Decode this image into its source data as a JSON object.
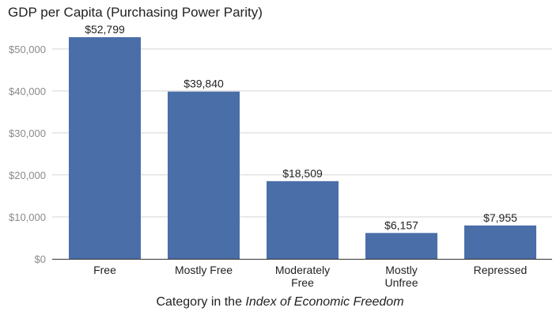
{
  "chart_data": {
    "type": "bar",
    "title": "GDP per Capita (Purchasing Power Parity)",
    "xlabel_parts": [
      "Category in the ",
      "Index of Economic Freedom"
    ],
    "ylabel": "",
    "categories": [
      [
        "Free"
      ],
      [
        "Mostly Free"
      ],
      [
        "Moderately",
        "Free"
      ],
      [
        "Mostly",
        "Unfree"
      ],
      [
        "Repressed"
      ]
    ],
    "values": [
      52799,
      39840,
      18509,
      6157,
      7955
    ],
    "value_labels": [
      "$52,799",
      "$39,840",
      "$18,509",
      "$6,157",
      "$7,955"
    ],
    "yticks": [
      0,
      10000,
      20000,
      30000,
      40000,
      50000
    ],
    "ytick_labels": [
      "$0",
      "$10,000",
      "$20,000",
      "$30,000",
      "$40,000",
      "$50,000"
    ],
    "ylim": [
      0,
      56000
    ],
    "grid": true,
    "legend": "none",
    "colors": {
      "bar": "#4a6ea8",
      "grid": "#d4d4d4",
      "axis": "#333333"
    }
  }
}
